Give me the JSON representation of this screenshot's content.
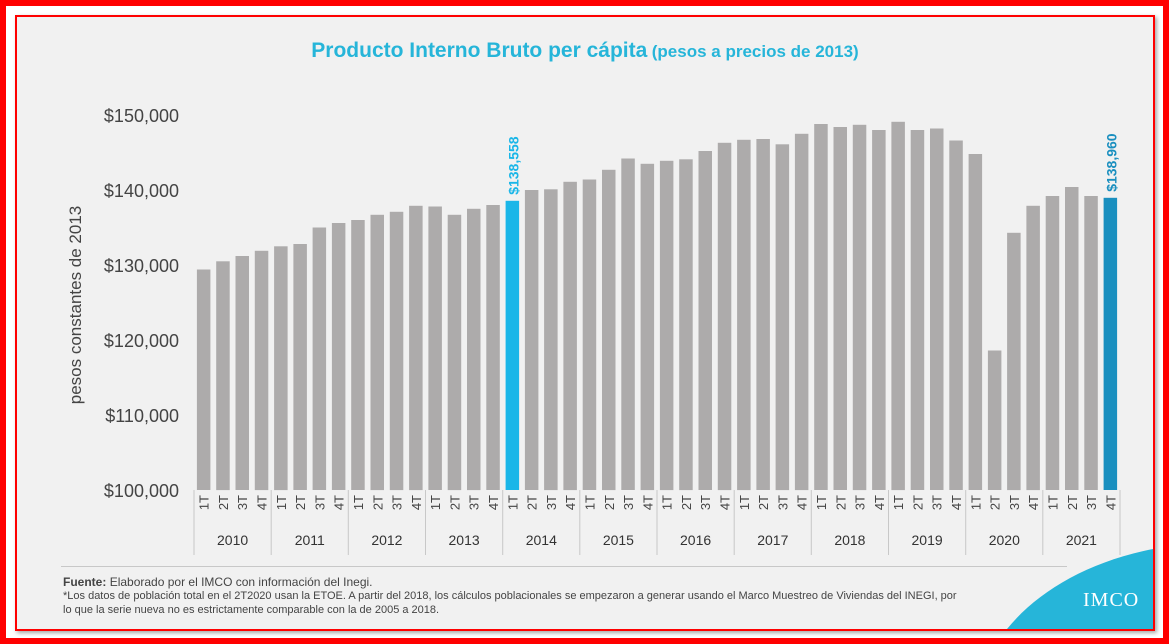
{
  "title": {
    "main": "Producto Interno Bruto per cápita",
    "sub": "(pesos a precios de 2013)"
  },
  "footer": {
    "source_label": "Fuente:",
    "source_text": "Elaborado por el IMCO con información del Inegi.",
    "note": "*Los datos de población total en el 2T2020 usan la ETOE. A partir del 2018, los cálculos poblacionales se empezaron a generar usando el Marco Muestreo de Viviendas del INEGI, por lo que la serie nueva no es estrictamente comparable con la de 2005 a 2018."
  },
  "logo": {
    "text": "IMCO"
  },
  "colors": {
    "title": "#26b5d9",
    "bar_default": "#adabab",
    "highlight_2014": "#1ab6e8",
    "highlight_2021": "#1a8fbf",
    "frame": "#ff0000",
    "background": "#f1f1f1"
  },
  "chart_data": {
    "type": "bar",
    "title": "Producto Interno Bruto per cápita (pesos a precios de 2013)",
    "ylabel": "pesos constantes de 2013",
    "xlabel": "",
    "ylim": [
      100000,
      150000
    ],
    "y_ticks": [
      100000,
      110000,
      120000,
      130000,
      140000,
      150000
    ],
    "y_tick_labels": [
      "$100,000",
      "$110,000",
      "$120,000",
      "$130,000",
      "$140,000",
      "$150,000"
    ],
    "grid": false,
    "quarters": [
      "1T",
      "2T",
      "3T",
      "4T"
    ],
    "years": [
      "2010",
      "2011",
      "2012",
      "2013",
      "2014",
      "2015",
      "2016",
      "2017",
      "2018",
      "2019",
      "2020",
      "2021"
    ],
    "values": [
      129400,
      130500,
      131200,
      131900,
      132500,
      132800,
      135000,
      135600,
      136000,
      136700,
      137100,
      137900,
      137800,
      136700,
      137500,
      138000,
      138558,
      140000,
      140100,
      141100,
      141400,
      142700,
      144200,
      143500,
      143900,
      144100,
      145200,
      146300,
      146700,
      146800,
      146100,
      147500,
      148800,
      148400,
      148700,
      148000,
      149100,
      148000,
      148200,
      146600,
      144800,
      118600,
      134300,
      137900,
      139200,
      140400,
      139200,
      138960
    ],
    "highlights": [
      {
        "index": 16,
        "label": "$138,558",
        "color": "#1ab6e8"
      },
      {
        "index": 47,
        "label": "$138,960",
        "color": "#1a8fbf"
      }
    ]
  }
}
